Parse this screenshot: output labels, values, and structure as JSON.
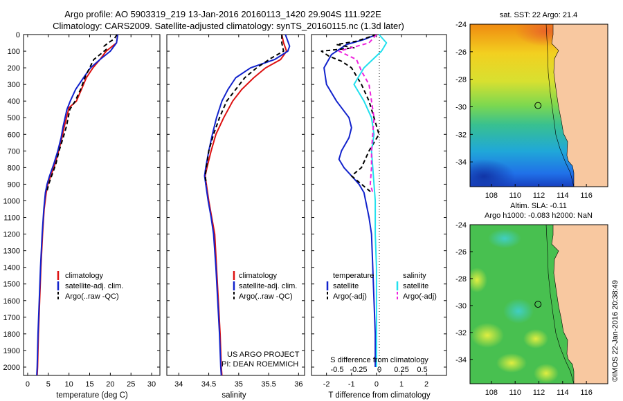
{
  "header": {
    "title_line1": "Argo profile: AO 5903319_219 13-Jan-2016 20160113_1420 29.904S 111.922E",
    "title_line2": "Climatology: CARS2009. Satellite-adjusted climatology: synTS_20160115.nc (1.3d later)"
  },
  "colors": {
    "climatology": "#dd1111",
    "satellite_temp": "#1122cc",
    "argo": "#000000",
    "satellite_sal": "#22e0ee",
    "argo_sal": "#ee22dd",
    "land": "#f8c8a0"
  },
  "chart_data": [
    {
      "type": "line",
      "name": "temperature-profile",
      "xlabel": "temperature (deg C)",
      "ylabel": "",
      "xlim": [
        -1,
        32
      ],
      "ylim": [
        2050,
        0
      ],
      "xticks": [
        0,
        5,
        10,
        15,
        20,
        25,
        30
      ],
      "yticks": [
        0,
        100,
        200,
        300,
        400,
        500,
        600,
        700,
        800,
        900,
        1000,
        1100,
        1200,
        1300,
        1400,
        1500,
        1600,
        1700,
        1800,
        1900,
        2000
      ],
      "legend": [
        "climatology",
        "satellite-adj. clim.",
        "Argo(..raw -QC)"
      ],
      "series": [
        {
          "name": "climatology",
          "style": "solid",
          "points": [
            [
              21.8,
              0
            ],
            [
              21.5,
              50
            ],
            [
              19,
              100
            ],
            [
              17.5,
              150
            ],
            [
              15.8,
              200
            ],
            [
              14.2,
              260
            ],
            [
              13,
              330
            ],
            [
              11.8,
              400
            ],
            [
              10,
              440
            ],
            [
              8.9,
              550
            ],
            [
              8.3,
              620
            ],
            [
              7.5,
              700
            ],
            [
              6.6,
              780
            ],
            [
              5.6,
              850
            ],
            [
              4.9,
              900
            ],
            [
              4.5,
              950
            ],
            [
              4,
              1050
            ],
            [
              3.6,
              1200
            ],
            [
              3.2,
              1400
            ],
            [
              2.9,
              1600
            ],
            [
              2.6,
              1800
            ],
            [
              2.4,
              2000
            ],
            [
              2.3,
              2050
            ]
          ]
        },
        {
          "name": "satellite-adj. clim.",
          "style": "solid",
          "points": [
            [
              21.8,
              0
            ],
            [
              21.5,
              50
            ],
            [
              20,
              100
            ],
            [
              17.5,
              150
            ],
            [
              15.2,
              200
            ],
            [
              13.5,
              260
            ],
            [
              11.6,
              330
            ],
            [
              10.3,
              400
            ],
            [
              9.5,
              450
            ],
            [
              8.6,
              550
            ],
            [
              8.1,
              620
            ],
            [
              7.3,
              700
            ],
            [
              6.3,
              780
            ],
            [
              5.3,
              850
            ],
            [
              4.7,
              900
            ],
            [
              4.3,
              950
            ],
            [
              3.9,
              1050
            ],
            [
              3.5,
              1200
            ],
            [
              3.1,
              1400
            ],
            [
              2.8,
              1600
            ],
            [
              2.5,
              1800
            ],
            [
              2.3,
              2000
            ],
            [
              2.2,
              2050
            ]
          ]
        },
        {
          "name": "Argo(..raw -QC)",
          "style": "dashed",
          "points": [
            [
              21.6,
              0
            ],
            [
              21,
              25
            ],
            [
              19.5,
              50
            ],
            [
              18.5,
              70
            ],
            [
              19,
              90
            ],
            [
              16,
              150
            ],
            [
              14,
              250
            ],
            [
              12.8,
              330
            ],
            [
              11.5,
              400
            ],
            [
              10.2,
              450
            ],
            [
              9.4,
              550
            ],
            [
              8.6,
              620
            ],
            [
              7.6,
              700
            ],
            [
              6.8,
              780
            ],
            [
              5.8,
              850
            ],
            [
              5.1,
              900
            ],
            [
              4.6,
              950
            ]
          ]
        }
      ]
    },
    {
      "type": "line",
      "name": "salinity-profile",
      "xlabel": "salinity",
      "ylabel": "",
      "xlim": [
        33.8,
        36.1
      ],
      "ylim": [
        2050,
        0
      ],
      "xticks": [
        34,
        34.5,
        35,
        35.5,
        36
      ],
      "legend": [
        "climatology",
        "satellite-adj. clim.",
        "Argo(..raw -QC)"
      ],
      "annotations": [
        "US ARGO PROJECT",
        "PI: DEAN ROEMMICH"
      ],
      "series": [
        {
          "name": "climatology",
          "style": "solid",
          "points": [
            [
              35.72,
              0
            ],
            [
              35.75,
              50
            ],
            [
              35.8,
              100
            ],
            [
              35.7,
              150
            ],
            [
              35.45,
              200
            ],
            [
              35.25,
              260
            ],
            [
              35.05,
              330
            ],
            [
              34.9,
              400
            ],
            [
              34.75,
              500
            ],
            [
              34.62,
              600
            ],
            [
              34.54,
              700
            ],
            [
              34.47,
              800
            ],
            [
              34.44,
              850
            ],
            [
              34.46,
              900
            ],
            [
              34.5,
              1000
            ],
            [
              34.55,
              1100
            ],
            [
              34.6,
              1200
            ],
            [
              34.63,
              1400
            ],
            [
              34.66,
              1600
            ],
            [
              34.69,
              1800
            ],
            [
              34.71,
              2000
            ],
            [
              34.72,
              2050
            ]
          ]
        },
        {
          "name": "satellite-adj. clim.",
          "style": "solid",
          "points": [
            [
              35.78,
              0
            ],
            [
              35.82,
              40
            ],
            [
              35.85,
              70
            ],
            [
              35.82,
              100
            ],
            [
              35.6,
              150
            ],
            [
              35.2,
              200
            ],
            [
              34.95,
              260
            ],
            [
              34.82,
              330
            ],
            [
              34.72,
              400
            ],
            [
              34.63,
              500
            ],
            [
              34.56,
              600
            ],
            [
              34.5,
              700
            ],
            [
              34.45,
              800
            ],
            [
              34.43,
              850
            ],
            [
              34.45,
              900
            ],
            [
              34.49,
              1000
            ],
            [
              34.54,
              1100
            ],
            [
              34.58,
              1200
            ],
            [
              34.62,
              1400
            ],
            [
              34.65,
              1600
            ],
            [
              34.68,
              1800
            ],
            [
              34.7,
              2000
            ],
            [
              34.71,
              2050
            ]
          ]
        },
        {
          "name": "Argo(..raw -QC)",
          "style": "dashed",
          "points": [
            [
              35.72,
              0
            ],
            [
              35.72,
              50
            ],
            [
              35.75,
              100
            ],
            [
              35.55,
              140
            ],
            [
              35.3,
              200
            ],
            [
              35.1,
              260
            ],
            [
              34.95,
              330
            ],
            [
              34.8,
              400
            ],
            [
              34.68,
              500
            ],
            [
              34.58,
              600
            ],
            [
              34.5,
              700
            ],
            [
              34.46,
              800
            ],
            [
              34.44,
              850
            ],
            [
              34.46,
              900
            ]
          ]
        }
      ]
    },
    {
      "type": "line",
      "name": "difference-from-climatology",
      "xlabel": "T difference from climatology",
      "xlabel_top": "S difference from climatology",
      "xlim": [
        -2.6,
        2.8
      ],
      "ylim": [
        2050,
        0
      ],
      "xticks": [
        -2,
        -1,
        0,
        1,
        2
      ],
      "xticks_S": [
        "-0.5",
        "-0.25",
        "0",
        "0.25",
        "0.5"
      ],
      "legend_headers": [
        "temperature",
        "salinity"
      ],
      "legend": [
        "satellite",
        "Argo(-adj)",
        "satellite",
        "Argo(-adj)"
      ],
      "series": [
        {
          "name": "satellite",
          "quantity": "temperature",
          "style": "solid",
          "points": [
            [
              0,
              0
            ],
            [
              -0.5,
              30
            ],
            [
              -1.2,
              60
            ],
            [
              -1.8,
              120
            ],
            [
              -2.1,
              200
            ],
            [
              -2.0,
              300
            ],
            [
              -1.6,
              400
            ],
            [
              -1.1,
              500
            ],
            [
              -1.0,
              560
            ],
            [
              -1.1,
              620
            ],
            [
              -1.4,
              700
            ],
            [
              -1.5,
              750
            ],
            [
              -1.3,
              800
            ],
            [
              -1.0,
              850
            ],
            [
              -0.7,
              900
            ],
            [
              -0.5,
              950
            ],
            [
              -0.3,
              1100
            ],
            [
              -0.2,
              1200
            ],
            [
              -0.15,
              1400
            ],
            [
              -0.1,
              1600
            ],
            [
              -0.05,
              1800
            ],
            [
              -0.05,
              2000
            ]
          ]
        },
        {
          "name": "Argo(-adj)",
          "quantity": "temperature",
          "style": "dashed",
          "points": [
            [
              0,
              0
            ],
            [
              -0.8,
              40
            ],
            [
              -1.6,
              60
            ],
            [
              -0.9,
              80
            ],
            [
              -2.2,
              100
            ],
            [
              -1.9,
              130
            ],
            [
              -1.4,
              160
            ],
            [
              -1.0,
              200
            ],
            [
              -0.6,
              300
            ],
            [
              -0.3,
              400
            ],
            [
              -0.1,
              500
            ],
            [
              0.1,
              600
            ],
            [
              -0.3,
              700
            ],
            [
              -0.6,
              800
            ],
            [
              -1.0,
              850
            ],
            [
              -0.6,
              900
            ],
            [
              -0.2,
              950
            ]
          ]
        },
        {
          "name": "satellite",
          "quantity": "salinity",
          "style": "solid",
          "points": [
            [
              0.1,
              0
            ],
            [
              0.4,
              50
            ],
            [
              0.2,
              100
            ],
            [
              -0.5,
              200
            ],
            [
              -0.9,
              300
            ],
            [
              -0.5,
              400
            ],
            [
              -0.2,
              500
            ],
            [
              -0.1,
              600
            ],
            [
              -0.2,
              700
            ],
            [
              -0.15,
              800
            ],
            [
              -0.1,
              900
            ],
            [
              -0.05,
              1000
            ],
            [
              -0.05,
              1200
            ],
            [
              0,
              1400
            ],
            [
              0,
              2000
            ]
          ]
        },
        {
          "name": "Argo(-adj)",
          "quantity": "salinity",
          "style": "dashed",
          "points": [
            [
              0,
              0
            ],
            [
              -0.3,
              50
            ],
            [
              -1.5,
              100
            ],
            [
              -0.8,
              150
            ],
            [
              -0.6,
              220
            ],
            [
              -0.3,
              300
            ],
            [
              -0.2,
              400
            ],
            [
              -0.1,
              500
            ],
            [
              -0.15,
              600
            ],
            [
              -0.2,
              700
            ],
            [
              -0.2,
              800
            ],
            [
              -0.25,
              900
            ],
            [
              -0.15,
              950
            ]
          ]
        }
      ]
    },
    {
      "type": "heatmap",
      "name": "sst-map",
      "title": "sat. SST: 22 Argo: 21.4",
      "xlim": [
        106.2,
        117.8
      ],
      "ylim": [
        -35.8,
        -24
      ],
      "xticks": [
        108,
        110,
        112,
        114,
        116
      ],
      "yticks": [
        -24,
        -26,
        -28,
        -30,
        -32,
        -34
      ],
      "marker": {
        "lon": 111.922,
        "lat": -29.904
      }
    },
    {
      "type": "heatmap",
      "name": "sla-map",
      "title_line1": "Altim. SLA: -0.11",
      "title_line2": "Argo h1000: -0.083 h2000: NaN",
      "xlim": [
        106.2,
        117.8
      ],
      "ylim": [
        -35.8,
        -24
      ],
      "xticks": [
        108,
        110,
        112,
        114,
        116
      ],
      "yticks": [
        -24,
        -26,
        -28,
        -30,
        -32,
        -34
      ],
      "marker": {
        "lon": 111.922,
        "lat": -29.904
      }
    }
  ],
  "footer": {
    "credit": "©IMOS 22-Jan-2016 20:38:49"
  }
}
